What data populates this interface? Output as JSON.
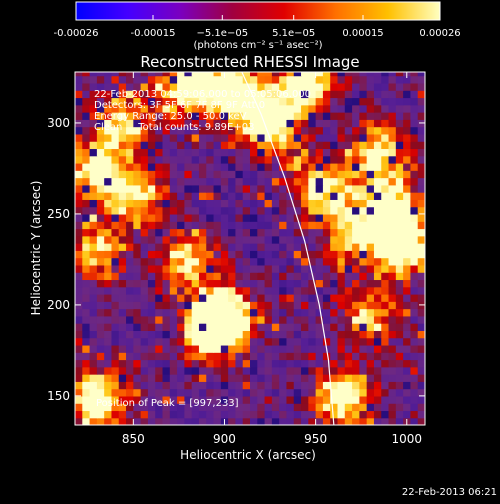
{
  "chart_data": {
    "type": "heatmap",
    "title": "Reconstructed RHESSI Image",
    "xlabel": "Heliocentric X (arcsec)",
    "ylabel": "Heliocentric Y (arcsec)",
    "xlim": [
      818,
      1010
    ],
    "ylim": [
      134,
      328
    ],
    "x_ticks": [
      850,
      900,
      950,
      1000
    ],
    "y_ticks": [
      150,
      200,
      250,
      300
    ],
    "colorbar": {
      "range": [
        -0.00026,
        0.00026
      ],
      "tick_values": [
        -0.00026,
        -0.00015,
        -5.1e-05,
        5.1e-05,
        0.00015,
        0.00026
      ],
      "tick_labels": [
        "-0.00026",
        "-0.00015",
        "−5.1e−05",
        "5.1e−05",
        "0.00015",
        "0.00026"
      ],
      "units": "(photons cm⁻² s⁻¹ asec⁻²)",
      "colors": [
        "#0000ff",
        "#4400ff",
        "#7a00c0",
        "#a00040",
        "#e00000",
        "#ff7000",
        "#ffc000",
        "#ffffc0"
      ]
    },
    "info_lines": [
      "22-Feb-2013 04:59:06.000 to 05:05:06.000",
      "Detectors: 3F 5F 6F 7F 8F 9F Att 0",
      "Energy Range: 25.0 - 50.0 keV",
      "Clean     Total counts: 9.89E+03"
    ],
    "peak_label": "Position of Peak = [997,233]",
    "peak": [
      997,
      233
    ],
    "limb_curve": [
      [
        905,
        338
      ],
      [
        920,
        305
      ],
      [
        933,
        270
      ],
      [
        944,
        235
      ],
      [
        952,
        200
      ],
      [
        957,
        170
      ],
      [
        960,
        134
      ]
    ],
    "bright_sources": [
      {
        "x": 899,
        "y": 195,
        "intensity": 0.95
      },
      {
        "x": 893,
        "y": 185,
        "intensity": 0.75
      },
      {
        "x": 997,
        "y": 233,
        "intensity": 1.0
      },
      {
        "x": 990,
        "y": 255,
        "intensity": 0.8
      },
      {
        "x": 985,
        "y": 285,
        "intensity": 0.7
      },
      {
        "x": 925,
        "y": 300,
        "intensity": 0.95
      },
      {
        "x": 905,
        "y": 318,
        "intensity": 0.9
      },
      {
        "x": 880,
        "y": 320,
        "intensity": 0.8
      },
      {
        "x": 945,
        "y": 322,
        "intensity": 0.85
      },
      {
        "x": 850,
        "y": 260,
        "intensity": 0.7
      },
      {
        "x": 830,
        "y": 275,
        "intensity": 0.75
      },
      {
        "x": 845,
        "y": 300,
        "intensity": 0.65
      },
      {
        "x": 955,
        "y": 265,
        "intensity": 0.7
      },
      {
        "x": 970,
        "y": 240,
        "intensity": 0.6
      },
      {
        "x": 965,
        "y": 150,
        "intensity": 0.8
      },
      {
        "x": 830,
        "y": 148,
        "intensity": 0.85
      },
      {
        "x": 880,
        "y": 225,
        "intensity": 0.6
      },
      {
        "x": 830,
        "y": 230,
        "intensity": 0.55
      },
      {
        "x": 980,
        "y": 195,
        "intensity": 0.55
      }
    ]
  },
  "footer": {
    "timestamp": "22-Feb-2013 06:21"
  }
}
